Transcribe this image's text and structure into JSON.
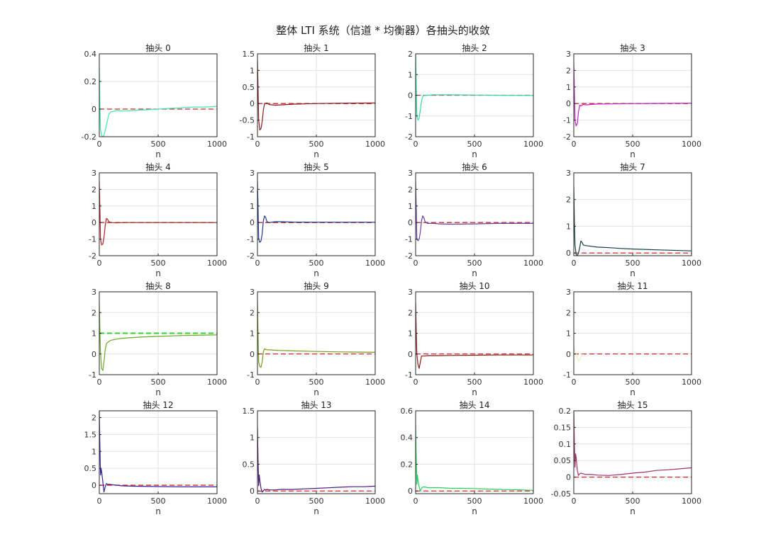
{
  "figure_title": "整体 LTI 系统（信道 * 均衡器）各抽头的收敛",
  "chart_data": [
    {
      "type": "line",
      "title": "抽头 0",
      "xlabel": "n",
      "xlim": [
        0,
        1000
      ],
      "ylim": [
        -0.2,
        0.4
      ],
      "xticks": [
        0,
        500,
        1000
      ],
      "yticks": [
        -0.2,
        0,
        0.2,
        0.4
      ],
      "ytick_labels": [
        "-0.2",
        "0",
        "0.2",
        "0.4"
      ],
      "reference": 0,
      "ref_color": "#d62728",
      "line_color": "#3de8b4",
      "series": [
        {
          "x": [
            0,
            5,
            10,
            20,
            30,
            40,
            60,
            80,
            100,
            150,
            200,
            300,
            400,
            500,
            600,
            700,
            800,
            900,
            1000
          ],
          "y": [
            0.3,
            0.05,
            -0.15,
            -0.19,
            -0.2,
            -0.19,
            -0.12,
            -0.04,
            -0.02,
            -0.01,
            -0.015,
            -0.01,
            -0.005,
            0,
            0.005,
            0.01,
            0.015,
            0.015,
            0.02
          ]
        }
      ]
    },
    {
      "type": "line",
      "title": "抽头 1",
      "xlabel": "n",
      "xlim": [
        0,
        1000
      ],
      "ylim": [
        -1,
        1.5
      ],
      "xticks": [
        0,
        500,
        1000
      ],
      "yticks": [
        -1,
        -0.5,
        0,
        0.5,
        1,
        1.5
      ],
      "ytick_labels": [
        "-1",
        "-0.5",
        "0",
        "0.5",
        "1",
        "1.5"
      ],
      "reference": 0,
      "ref_color": "#d62728",
      "line_color": "#8b1a1a",
      "series": [
        {
          "x": [
            0,
            5,
            10,
            20,
            30,
            40,
            50,
            60,
            80,
            100,
            150,
            200,
            300,
            500,
            700,
            1000
          ],
          "y": [
            1.3,
            0.5,
            -0.5,
            -0.8,
            -0.75,
            -0.55,
            -0.2,
            0,
            0.02,
            -0.03,
            -0.05,
            -0.04,
            -0.02,
            0,
            0.01,
            0.02
          ]
        }
      ]
    },
    {
      "type": "line",
      "title": "抽头 2",
      "xlabel": "n",
      "xlim": [
        0,
        1000
      ],
      "ylim": [
        -2,
        2
      ],
      "xticks": [
        0,
        500,
        1000
      ],
      "yticks": [
        -2,
        -1,
        0,
        1,
        2
      ],
      "ytick_labels": [
        "-2",
        "-1",
        "0",
        "1",
        "2"
      ],
      "reference": 0,
      "ref_color": "#d62728",
      "line_color": "#26e0a8",
      "series": [
        {
          "x": [
            0,
            5,
            10,
            20,
            30,
            40,
            50,
            60,
            80,
            100,
            150,
            200,
            300,
            500,
            700,
            1000
          ],
          "y": [
            2.0,
            0.5,
            -1.0,
            -1.2,
            -1.1,
            -0.7,
            -0.3,
            -0.05,
            0,
            0,
            0.02,
            0.02,
            0.02,
            0.01,
            0,
            -0.01
          ]
        }
      ]
    },
    {
      "type": "line",
      "title": "抽头 3",
      "xlabel": "n",
      "xlim": [
        0,
        1000
      ],
      "ylim": [
        -2,
        3
      ],
      "xticks": [
        0,
        500,
        1000
      ],
      "yticks": [
        -2,
        -1,
        0,
        1,
        2,
        3
      ],
      "ytick_labels": [
        "-2",
        "-1",
        "0",
        "1",
        "2",
        "3"
      ],
      "reference": 0,
      "ref_color": "#d62728",
      "line_color": "#c81ec8",
      "series": [
        {
          "x": [
            0,
            5,
            10,
            20,
            30,
            40,
            50,
            60,
            80,
            100,
            150,
            200,
            300,
            500,
            700,
            1000
          ],
          "y": [
            2.4,
            0.8,
            -1.0,
            -1.35,
            -1.2,
            -0.5,
            -0.1,
            -0.15,
            -0.05,
            -0.08,
            -0.05,
            -0.03,
            -0.02,
            0,
            0.01,
            0.02
          ]
        }
      ]
    },
    {
      "type": "line",
      "title": "抽头 4",
      "xlabel": "n",
      "xlim": [
        0,
        1000
      ],
      "ylim": [
        -2,
        3
      ],
      "xticks": [
        0,
        500,
        1000
      ],
      "yticks": [
        -2,
        -1,
        0,
        1,
        2,
        3
      ],
      "ytick_labels": [
        "-2",
        "-1",
        "0",
        "1",
        "2",
        "3"
      ],
      "reference": 0,
      "ref_color": "#d62728",
      "line_color": "#b22222",
      "series": [
        {
          "x": [
            0,
            5,
            10,
            20,
            30,
            40,
            50,
            60,
            70,
            80,
            100,
            150,
            200,
            300,
            500,
            700,
            1000
          ],
          "y": [
            2.5,
            1.0,
            -1.0,
            -1.35,
            -1.3,
            -0.9,
            -0.2,
            0.25,
            0.2,
            0.05,
            0,
            -0.02,
            0,
            0,
            0,
            0,
            0
          ]
        }
      ]
    },
    {
      "type": "line",
      "title": "抽头 5",
      "xlabel": "n",
      "xlim": [
        0,
        1000
      ],
      "ylim": [
        -2,
        3
      ],
      "xticks": [
        0,
        500,
        1000
      ],
      "yticks": [
        -2,
        -1,
        0,
        1,
        2,
        3
      ],
      "ytick_labels": [
        "-2",
        "-1",
        "0",
        "1",
        "2",
        "3"
      ],
      "reference": 0,
      "ref_color": "#d62728",
      "line_color": "#1f3a93",
      "series": [
        {
          "x": [
            0,
            5,
            10,
            20,
            30,
            40,
            50,
            60,
            70,
            80,
            100,
            150,
            200,
            300,
            500,
            700,
            1000
          ],
          "y": [
            2.5,
            1.0,
            -1.0,
            -1.2,
            -1.1,
            -0.7,
            0.1,
            0.4,
            0.3,
            0.05,
            0,
            0.05,
            0.05,
            0.03,
            0.02,
            0.02,
            0.02
          ]
        }
      ]
    },
    {
      "type": "line",
      "title": "抽头 6",
      "xlabel": "n",
      "xlim": [
        0,
        1000
      ],
      "ylim": [
        -2,
        3
      ],
      "xticks": [
        0,
        500,
        1000
      ],
      "yticks": [
        -2,
        -1,
        0,
        1,
        2,
        3
      ],
      "ytick_labels": [
        "-2",
        "-1",
        "0",
        "1",
        "2",
        "3"
      ],
      "reference": 0,
      "ref_color": "#d62728",
      "line_color": "#6a3fa0",
      "series": [
        {
          "x": [
            0,
            5,
            10,
            20,
            30,
            40,
            50,
            60,
            70,
            80,
            100,
            150,
            200,
            300,
            500,
            700,
            1000
          ],
          "y": [
            2.5,
            1.0,
            -1.0,
            -1.1,
            -1.0,
            -0.6,
            0.1,
            0.4,
            0.3,
            0.05,
            -0.05,
            -0.05,
            -0.08,
            -0.1,
            -0.08,
            -0.05,
            -0.05
          ]
        }
      ]
    },
    {
      "type": "line",
      "title": "抽头 7",
      "xlabel": "n",
      "xlim": [
        0,
        1000
      ],
      "ylim": [
        -0.1,
        3
      ],
      "xticks": [
        0,
        500,
        1000
      ],
      "yticks": [
        0,
        1,
        2,
        3
      ],
      "ytick_labels": [
        "0",
        "1",
        "2",
        "3"
      ],
      "reference": 0,
      "ref_color": "#d62728",
      "line_color": "#143c3c",
      "series": [
        {
          "x": [
            0,
            5,
            10,
            20,
            30,
            40,
            50,
            60,
            70,
            80,
            100,
            150,
            200,
            300,
            400,
            500,
            700,
            1000
          ],
          "y": [
            2.5,
            1.2,
            0.3,
            -0.05,
            -0.1,
            0,
            0.2,
            0.45,
            0.4,
            0.3,
            0.28,
            0.25,
            0.22,
            0.2,
            0.17,
            0.15,
            0.12,
            0.08
          ]
        }
      ]
    },
    {
      "type": "line",
      "title": "抽头 8",
      "xlabel": "n",
      "xlim": [
        0,
        1000
      ],
      "ylim": [
        -1,
        3
      ],
      "xticks": [
        0,
        500,
        1000
      ],
      "yticks": [
        -1,
        0,
        1,
        2,
        3
      ],
      "ytick_labels": [
        "-1",
        "0",
        "1",
        "2",
        "3"
      ],
      "reference": 1,
      "ref_color": "#2bd42b",
      "line_color": "#6aaa22",
      "series": [
        {
          "x": [
            0,
            5,
            10,
            20,
            30,
            40,
            50,
            60,
            80,
            100,
            150,
            200,
            300,
            400,
            500,
            600,
            700,
            800,
            900,
            1000
          ],
          "y": [
            2.5,
            1.2,
            0,
            -0.7,
            -0.8,
            -0.4,
            0.2,
            0.5,
            0.6,
            0.66,
            0.72,
            0.76,
            0.8,
            0.83,
            0.85,
            0.87,
            0.89,
            0.9,
            0.91,
            0.92
          ]
        }
      ]
    },
    {
      "type": "line",
      "title": "抽头 9",
      "xlabel": "n",
      "xlim": [
        0,
        1000
      ],
      "ylim": [
        -1,
        3
      ],
      "xticks": [
        0,
        500,
        1000
      ],
      "yticks": [
        -1,
        0,
        1,
        2,
        3
      ],
      "ytick_labels": [
        "-1",
        "0",
        "1",
        "2",
        "3"
      ],
      "reference": 0,
      "ref_color": "#d62728",
      "line_color": "#7a9a1a",
      "series": [
        {
          "x": [
            0,
            5,
            10,
            20,
            30,
            40,
            50,
            60,
            70,
            80,
            100,
            150,
            200,
            300,
            500,
            700,
            1000
          ],
          "y": [
            2.5,
            1.0,
            -0.4,
            -0.6,
            -0.65,
            -0.4,
            0.1,
            0.25,
            0.22,
            0.2,
            0.2,
            0.18,
            0.17,
            0.15,
            0.12,
            0.1,
            0.08
          ]
        }
      ]
    },
    {
      "type": "line",
      "title": "抽头 10",
      "xlabel": "n",
      "xlim": [
        0,
        1000
      ],
      "ylim": [
        -1,
        3
      ],
      "xticks": [
        0,
        500,
        1000
      ],
      "yticks": [
        -1,
        0,
        1,
        2,
        3
      ],
      "ytick_labels": [
        "-1",
        "0",
        "1",
        "2",
        "3"
      ],
      "reference": 0,
      "ref_color": "#d62728",
      "line_color": "#8b1a1a",
      "series": [
        {
          "x": [
            0,
            5,
            10,
            20,
            30,
            40,
            50,
            60,
            80,
            100,
            150,
            200,
            300,
            500,
            700,
            1000
          ],
          "y": [
            2.5,
            1.2,
            0,
            -0.5,
            -0.7,
            -0.4,
            -0.1,
            -0.1,
            -0.1,
            -0.08,
            -0.08,
            -0.08,
            -0.07,
            -0.06,
            -0.05,
            -0.05
          ]
        }
      ]
    },
    {
      "type": "line",
      "title": "抽头 11",
      "xlabel": "n",
      "xlim": [
        0,
        1000
      ],
      "ylim": [
        -1,
        3
      ],
      "xticks": [
        0,
        500,
        1000
      ],
      "yticks": [
        -1,
        0,
        1,
        2,
        3
      ],
      "ytick_labels": [
        "-1",
        "0",
        "1",
        "2",
        "3"
      ],
      "reference": 0,
      "ref_color": "#d62728",
      "line_color": "#f0f0b8",
      "series": [
        {
          "x": [
            0,
            5,
            10,
            20,
            30,
            40,
            50,
            60,
            70,
            80
          ],
          "y": [
            0.4,
            0.2,
            0.1,
            0,
            -0.2,
            -0.35,
            -0.3,
            -0.15,
            -0.05,
            0
          ]
        }
      ]
    },
    {
      "type": "line",
      "title": "抽头 12",
      "xlabel": "n",
      "xlim": [
        0,
        1000
      ],
      "ylim": [
        -0.25,
        2.2
      ],
      "xticks": [
        0,
        500,
        1000
      ],
      "yticks": [
        0,
        0.5,
        1,
        1.5,
        2
      ],
      "ytick_labels": [
        "0",
        "0.5",
        "1",
        "1.5",
        "2"
      ],
      "reference": 0,
      "ref_color": "#d62728",
      "line_color": "#3a1fa0",
      "series": [
        {
          "x": [
            0,
            5,
            10,
            15,
            20,
            30,
            40,
            50,
            60,
            70,
            80,
            100,
            150,
            200,
            300,
            500,
            700,
            1000
          ],
          "y": [
            2.2,
            1.2,
            0.3,
            0.5,
            0.4,
            0.1,
            -0.2,
            -0.05,
            0.05,
            0.02,
            0.03,
            0.02,
            0,
            -0.02,
            -0.03,
            -0.04,
            -0.05,
            -0.05
          ]
        }
      ]
    },
    {
      "type": "line",
      "title": "抽头 13",
      "xlabel": "n",
      "xlim": [
        0,
        1000
      ],
      "ylim": [
        -0.05,
        1.5
      ],
      "xticks": [
        0,
        500,
        1000
      ],
      "yticks": [
        0,
        0.5,
        1,
        1.5
      ],
      "ytick_labels": [
        "0",
        "0.5",
        "1",
        "1.5"
      ],
      "reference": 0,
      "ref_color": "#d62728",
      "line_color": "#4a1a7a",
      "series": [
        {
          "x": [
            0,
            5,
            10,
            15,
            20,
            30,
            40,
            50,
            60,
            70,
            80,
            100,
            150,
            200,
            300,
            400,
            500,
            600,
            700,
            800,
            900,
            1000
          ],
          "y": [
            1.2,
            0.6,
            0.1,
            0.3,
            0.2,
            0.05,
            -0.02,
            0,
            0.03,
            0.02,
            0.03,
            0.02,
            0.02,
            0.03,
            0.03,
            0.04,
            0.05,
            0.06,
            0.07,
            0.08,
            0.08,
            0.09
          ]
        }
      ]
    },
    {
      "type": "line",
      "title": "抽头 14",
      "xlabel": "n",
      "xlim": [
        0,
        1000
      ],
      "ylim": [
        -0.02,
        0.6
      ],
      "xticks": [
        0,
        500,
        1000
      ],
      "yticks": [
        0,
        0.2,
        0.4,
        0.6
      ],
      "ytick_labels": [
        "0",
        "0.2",
        "0.4",
        "0.6"
      ],
      "reference": 0,
      "ref_color": "#d62728",
      "line_color": "#1fd45a",
      "series": [
        {
          "x": [
            0,
            5,
            10,
            15,
            20,
            30,
            40,
            50,
            60,
            80,
            100,
            150,
            200,
            300,
            400,
            500,
            600,
            700,
            800,
            900,
            1000
          ],
          "y": [
            0.5,
            0.25,
            0.05,
            0.12,
            0.08,
            0.03,
            0,
            0.02,
            0.03,
            0.03,
            0.025,
            0.025,
            0.025,
            0.02,
            0.02,
            0.018,
            0.015,
            0.012,
            0.01,
            0.008,
            0.005
          ]
        }
      ]
    },
    {
      "type": "line",
      "title": "抽头 15",
      "xlabel": "n",
      "xlim": [
        0,
        1000
      ],
      "ylim": [
        -0.05,
        0.2
      ],
      "xticks": [
        0,
        500,
        1000
      ],
      "yticks": [
        -0.05,
        0,
        0.05,
        0.1,
        0.15,
        0.2
      ],
      "ytick_labels": [
        "-0.05",
        "0",
        "0.05",
        "0.1",
        "0.15",
        "0.2"
      ],
      "reference": 0,
      "ref_color": "#d62728",
      "line_color": "#a0306a",
      "series": [
        {
          "x": [
            0,
            5,
            10,
            15,
            20,
            30,
            40,
            50,
            60,
            80,
            100,
            150,
            200,
            300,
            400,
            500,
            600,
            700,
            800,
            900,
            1000
          ],
          "y": [
            0.2,
            0.1,
            0.03,
            0.07,
            0.06,
            0.02,
            0.005,
            0.01,
            0.012,
            0.01,
            0.008,
            0.008,
            0.006,
            0.005,
            0.008,
            0.012,
            0.015,
            0.02,
            0.022,
            0.025,
            0.028
          ]
        }
      ]
    }
  ]
}
